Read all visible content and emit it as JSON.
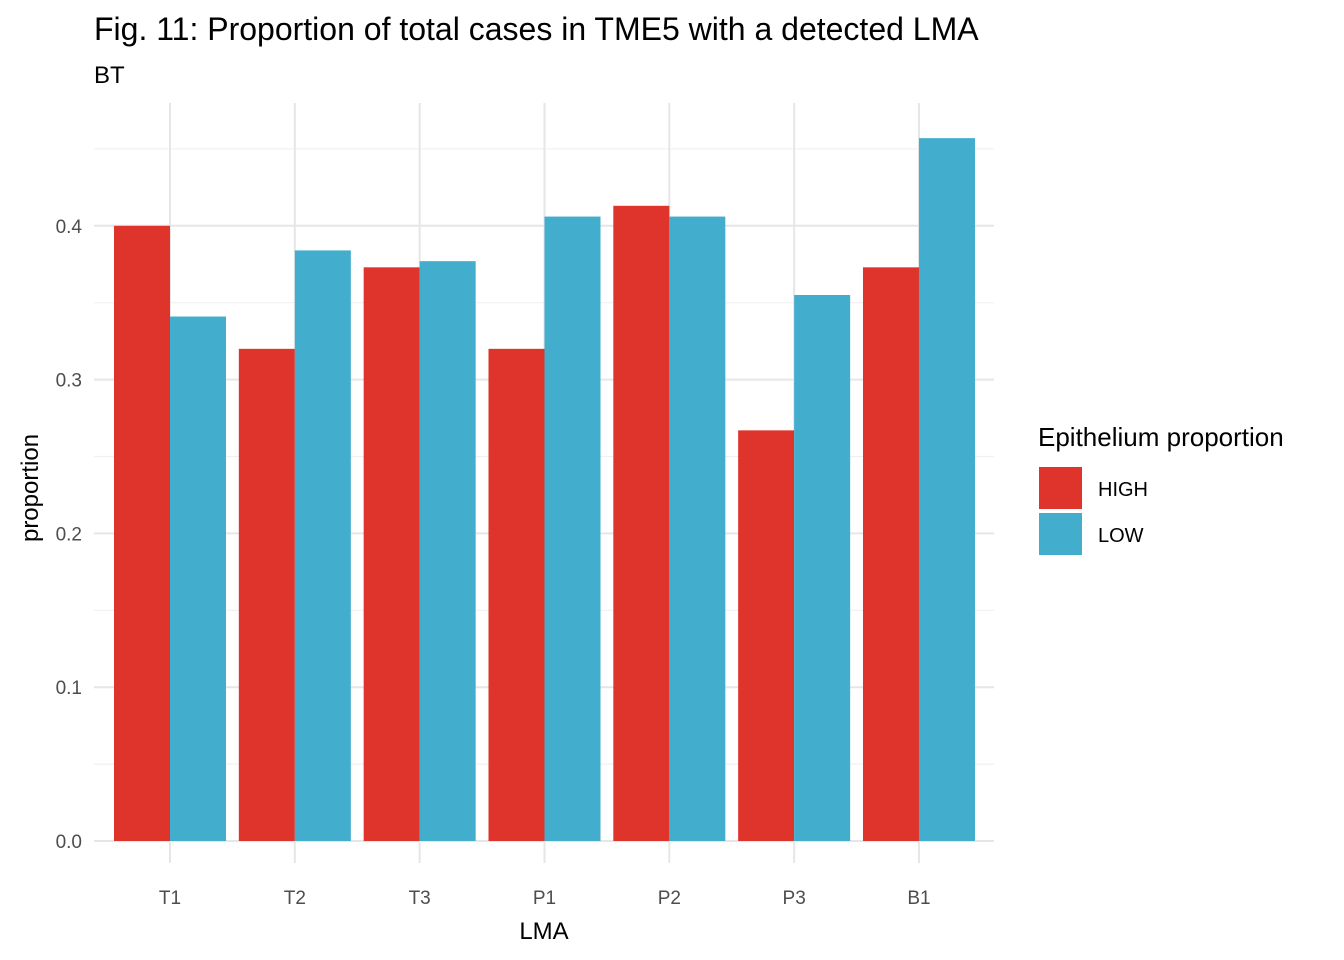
{
  "chart_data": {
    "type": "bar",
    "title": "Fig. 11: Proportion of total cases in TME5 with a detected LMA",
    "subtitle": "BT",
    "xlabel": "LMA",
    "ylabel": "proportion",
    "categories": [
      "T1",
      "T2",
      "T3",
      "P1",
      "P2",
      "P3",
      "B1"
    ],
    "series": [
      {
        "name": "HIGH",
        "color": "#DE342B",
        "values": [
          0.4,
          0.32,
          0.373,
          0.32,
          0.413,
          0.267,
          0.373
        ]
      },
      {
        "name": "LOW",
        "color": "#42ADCC",
        "values": [
          0.341,
          0.384,
          0.377,
          0.406,
          0.406,
          0.355,
          0.457
        ]
      }
    ],
    "ylim": [
      0,
      0.48
    ],
    "yticks": [
      0.0,
      0.1,
      0.2,
      0.3,
      0.4
    ],
    "ytick_labels": [
      "0.0",
      "0.1",
      "0.2",
      "0.3",
      "0.4"
    ],
    "grid": true,
    "legend": {
      "title": "Epithelium proportion",
      "position": "right"
    }
  }
}
